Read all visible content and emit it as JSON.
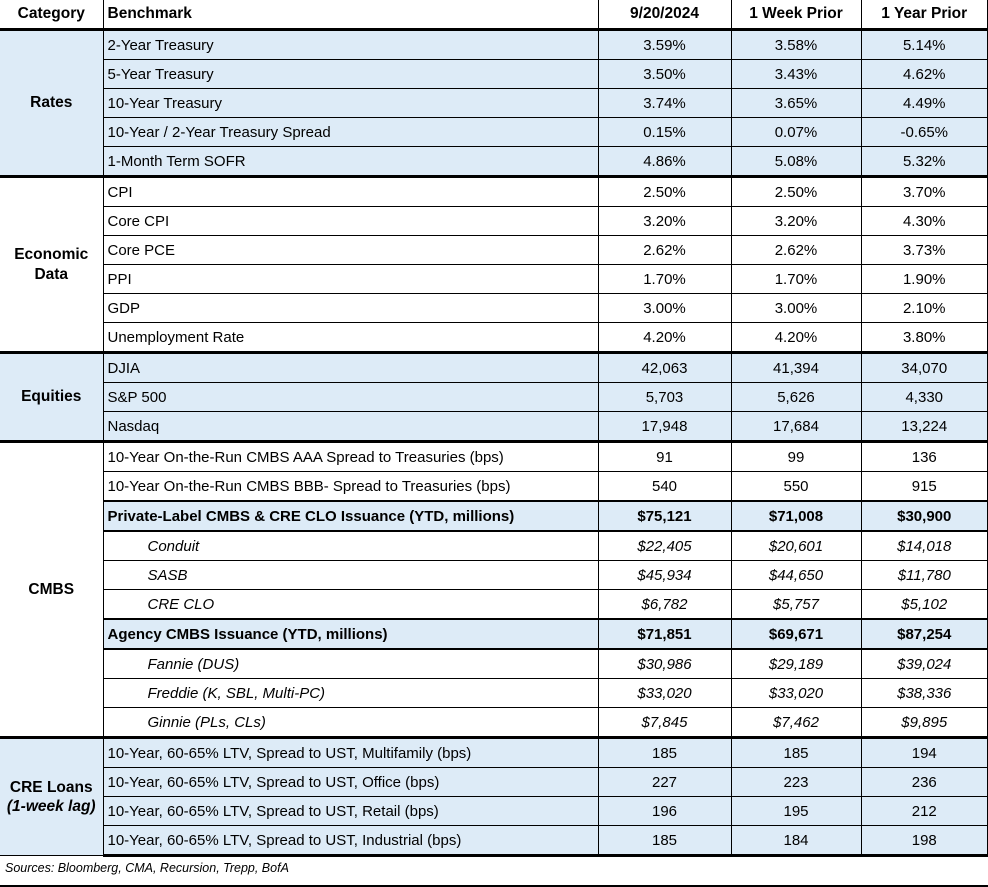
{
  "colors": {
    "row_shade": "#DDEBF7",
    "border": "#000000",
    "text": "#000000",
    "background": "#FFFFFF"
  },
  "table": {
    "columns": [
      "Category",
      "Benchmark",
      "9/20/2024",
      "1 Week Prior",
      "1 Year Prior"
    ],
    "sections": [
      {
        "category": "Rates",
        "rows": [
          {
            "benchmark": "2-Year Treasury",
            "values": [
              "3.59%",
              "3.58%",
              "5.14%"
            ]
          },
          {
            "benchmark": "5-Year Treasury",
            "values": [
              "3.50%",
              "3.43%",
              "4.62%"
            ]
          },
          {
            "benchmark": "10-Year Treasury",
            "values": [
              "3.74%",
              "3.65%",
              "4.49%"
            ]
          },
          {
            "benchmark": "10-Year / 2-Year Treasury Spread",
            "values": [
              "0.15%",
              "0.07%",
              "-0.65%"
            ]
          },
          {
            "benchmark": "1-Month Term SOFR",
            "values": [
              "4.86%",
              "5.08%",
              "5.32%"
            ]
          }
        ]
      },
      {
        "category": "Economic Data",
        "rows": [
          {
            "benchmark": "CPI",
            "values": [
              "2.50%",
              "2.50%",
              "3.70%"
            ]
          },
          {
            "benchmark": "Core CPI",
            "values": [
              "3.20%",
              "3.20%",
              "4.30%"
            ]
          },
          {
            "benchmark": "Core PCE",
            "values": [
              "2.62%",
              "2.62%",
              "3.73%"
            ]
          },
          {
            "benchmark": "PPI",
            "values": [
              "1.70%",
              "1.70%",
              "1.90%"
            ]
          },
          {
            "benchmark": "GDP",
            "values": [
              "3.00%",
              "3.00%",
              "2.10%"
            ]
          },
          {
            "benchmark": "Unemployment Rate",
            "values": [
              "4.20%",
              "4.20%",
              "3.80%"
            ]
          }
        ]
      },
      {
        "category": "Equities",
        "rows": [
          {
            "benchmark": "DJIA",
            "values": [
              "42,063",
              "41,394",
              "34,070"
            ]
          },
          {
            "benchmark": "S&P 500",
            "values": [
              "5,703",
              "5,626",
              "4,330"
            ]
          },
          {
            "benchmark": "Nasdaq",
            "values": [
              "17,948",
              "17,684",
              "13,224"
            ]
          }
        ]
      },
      {
        "category": "CMBS",
        "rows": [
          {
            "benchmark": "10-Year On-the-Run CMBS AAA Spread to Treasuries (bps)",
            "values": [
              "91",
              "99",
              "136"
            ]
          },
          {
            "benchmark": "10-Year On-the-Run CMBS BBB- Spread to Treasuries (bps)",
            "values": [
              "540",
              "550",
              "915"
            ]
          },
          {
            "benchmark": "Private-Label CMBS & CRE CLO Issuance (YTD, millions)",
            "values": [
              "$75,121",
              "$71,008",
              "$30,900"
            ]
          },
          {
            "benchmark": "Conduit",
            "values": [
              "$22,405",
              "$20,601",
              "$14,018"
            ]
          },
          {
            "benchmark": "SASB",
            "values": [
              "$45,934",
              "$44,650",
              "$11,780"
            ]
          },
          {
            "benchmark": "CRE CLO",
            "values": [
              "$6,782",
              "$5,757",
              "$5,102"
            ]
          },
          {
            "benchmark": "Agency CMBS Issuance (YTD, millions)",
            "values": [
              "$71,851",
              "$69,671",
              "$87,254"
            ]
          },
          {
            "benchmark": "Fannie (DUS)",
            "values": [
              "$30,986",
              "$29,189",
              "$39,024"
            ]
          },
          {
            "benchmark": "Freddie (K, SBL, Multi-PC)",
            "values": [
              "$33,020",
              "$33,020",
              "$38,336"
            ]
          },
          {
            "benchmark": "Ginnie (PLs, CLs)",
            "values": [
              "$7,845",
              "$7,462",
              "$9,895"
            ]
          }
        ]
      },
      {
        "category": "CRE Loans",
        "category_note": "(1-week lag)",
        "rows": [
          {
            "benchmark": "10-Year, 60-65% LTV, Spread to UST, Multifamily (bps)",
            "values": [
              "185",
              "185",
              "194"
            ]
          },
          {
            "benchmark": "10-Year, 60-65% LTV, Spread to UST, Office (bps)",
            "values": [
              "227",
              "223",
              "236"
            ]
          },
          {
            "benchmark": "10-Year, 60-65% LTV, Spread to UST, Retail (bps)",
            "values": [
              "196",
              "195",
              "212"
            ]
          },
          {
            "benchmark": "10-Year, 60-65% LTV, Spread to UST, Industrial (bps)",
            "values": [
              "185",
              "184",
              "198"
            ]
          }
        ]
      }
    ]
  },
  "footer": {
    "sources": "Sources: Bloomberg, CMA, Recursion, Trepp, BofA"
  }
}
